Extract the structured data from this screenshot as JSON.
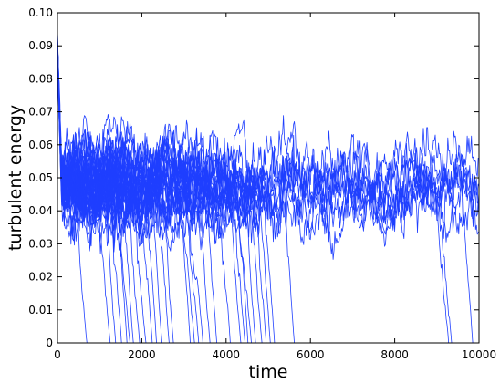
{
  "chart_data": {
    "type": "line",
    "title": "",
    "xlabel": "time",
    "ylabel": "turbulent energy",
    "xlim": [
      0,
      10000
    ],
    "ylim": [
      0,
      0.1
    ],
    "x_ticks": [
      0,
      2000,
      4000,
      6000,
      8000,
      10000
    ],
    "x_tick_labels": [
      "0",
      "2000",
      "4000",
      "6000",
      "8000",
      "10000"
    ],
    "y_ticks": [
      0,
      0.01,
      0.02,
      0.03,
      0.04,
      0.05,
      0.06,
      0.07,
      0.08,
      0.09,
      0.1
    ],
    "y_tick_labels": [
      "0",
      "0.01",
      "0.02",
      "0.03",
      "0.04",
      "0.05",
      "0.06",
      "0.07",
      "0.08",
      "0.09",
      "0.10"
    ],
    "grid": false,
    "legend": "none",
    "line_color": "#1f3fff",
    "initial_energy": 0.09,
    "transient_decay_time": 100,
    "mean_turbulent_level": 0.048,
    "fluctuation_amplitude": 0.006,
    "series_count": 40,
    "decay_times": [
      700,
      1250,
      1380,
      1520,
      1650,
      1720,
      1800,
      1950,
      2100,
      2250,
      2350,
      2480,
      2650,
      2750,
      3150,
      3250,
      3350,
      3450,
      3620,
      3780,
      4100,
      4350,
      4450,
      4520,
      4600,
      4700,
      4850,
      4950,
      5050,
      5150,
      5620,
      9280,
      9350,
      9850
    ],
    "persisting_series_count": 6,
    "decay_duration": 300
  }
}
